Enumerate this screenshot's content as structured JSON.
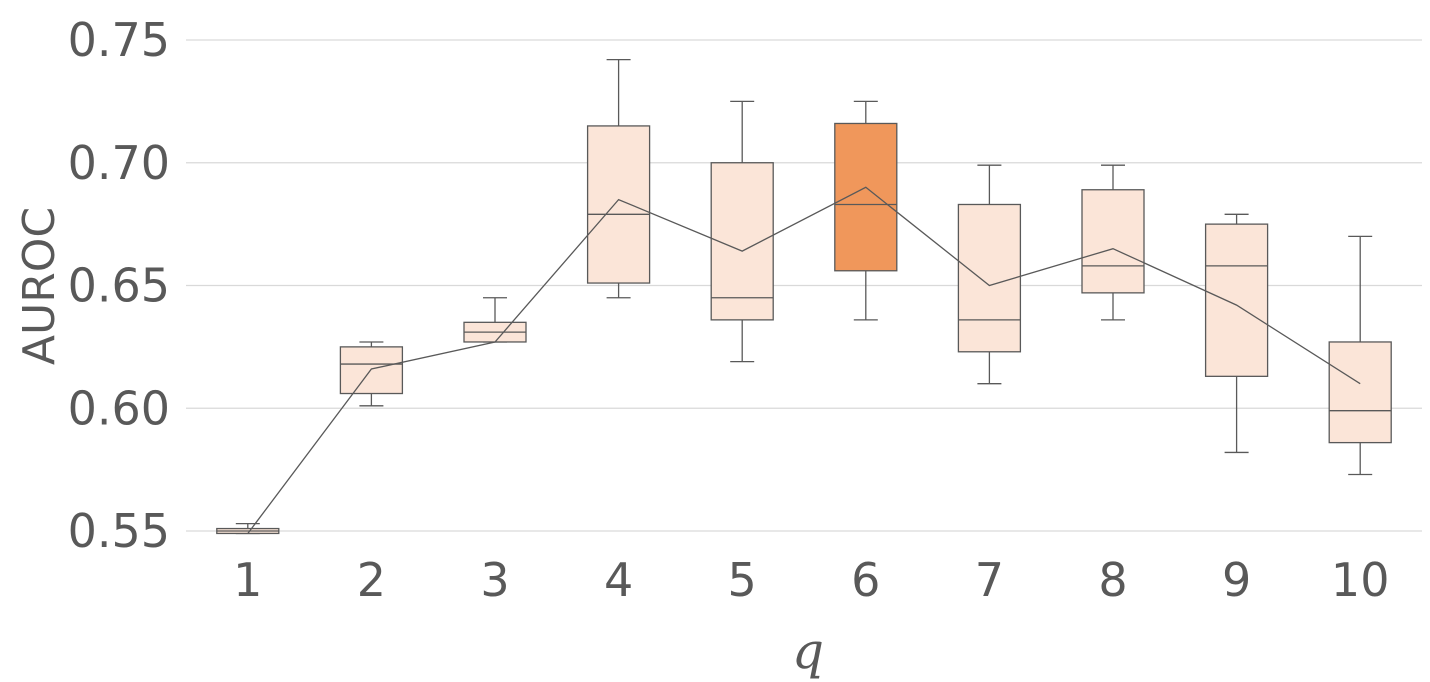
{
  "chart_data": {
    "type": "box",
    "xlabel": "q",
    "ylabel": "AUROC",
    "categories": [
      "1",
      "2",
      "3",
      "4",
      "5",
      "6",
      "7",
      "8",
      "9",
      "10"
    ],
    "ylim": [
      0.55,
      0.75
    ],
    "yticks": [
      "0.55",
      "0.60",
      "0.65",
      "0.70",
      "0.75"
    ],
    "grid": true,
    "boxes": [
      {
        "category": "1",
        "min": 0.549,
        "q1": 0.549,
        "median": 0.55,
        "q3": 0.551,
        "max": 0.553,
        "mean": 0.549
      },
      {
        "category": "2",
        "min": 0.601,
        "q1": 0.606,
        "median": 0.618,
        "q3": 0.625,
        "max": 0.627,
        "mean": 0.616
      },
      {
        "category": "3",
        "min": 0.627,
        "q1": 0.627,
        "median": 0.631,
        "q3": 0.635,
        "max": 0.645,
        "mean": 0.627
      },
      {
        "category": "4",
        "min": 0.645,
        "q1": 0.651,
        "median": 0.679,
        "q3": 0.715,
        "max": 0.742,
        "mean": 0.685
      },
      {
        "category": "5",
        "min": 0.619,
        "q1": 0.636,
        "median": 0.645,
        "q3": 0.7,
        "max": 0.725,
        "mean": 0.664
      },
      {
        "category": "6",
        "min": 0.636,
        "q1": 0.656,
        "median": 0.683,
        "q3": 0.716,
        "max": 0.725,
        "mean": 0.69
      },
      {
        "category": "7",
        "min": 0.61,
        "q1": 0.623,
        "median": 0.636,
        "q3": 0.683,
        "max": 0.699,
        "mean": 0.65
      },
      {
        "category": "8",
        "min": 0.636,
        "q1": 0.647,
        "median": 0.658,
        "q3": 0.689,
        "max": 0.699,
        "mean": 0.665
      },
      {
        "category": "9",
        "min": 0.582,
        "q1": 0.613,
        "median": 0.658,
        "q3": 0.675,
        "max": 0.679,
        "mean": 0.642
      },
      {
        "category": "10",
        "min": 0.573,
        "q1": 0.586,
        "median": 0.599,
        "q3": 0.627,
        "max": 0.67,
        "mean": 0.61
      }
    ],
    "highlighted_category": "6",
    "colors": {
      "box_fill": "#fbe5d8",
      "highlight_fill": "#f0975b",
      "outline": "#595959",
      "grid": "#d9d9d9",
      "text": "#595959"
    }
  }
}
